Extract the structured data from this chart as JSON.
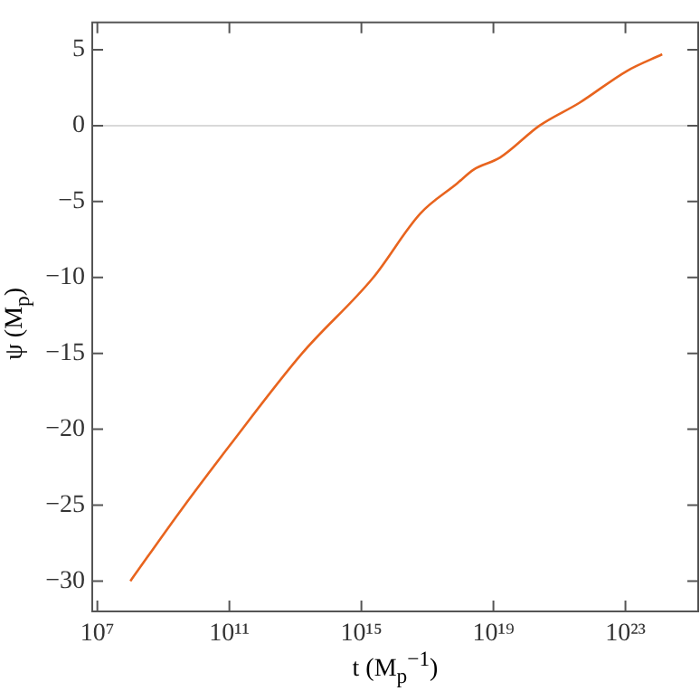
{
  "chart_data": {
    "type": "line",
    "xlabel": "t (M$_{p}$$^{−1}$)",
    "ylabel": "ψ (M$_{p}$)",
    "log": "x",
    "series": [
      {
        "color": "#e8641e",
        "x": [
          100000000.0,
          3000000000.0,
          100000000000.0,
          16000000000000.0,
          2300000000000000.0,
          6e+16,
          8e+17,
          2.5e+18,
          1.6e+19,
          2.5e+20,
          4e+21,
          1.1e+23,
          1.3e+24
        ],
        "values": [
          -30,
          -25.5,
          -21.1,
          -15,
          -10,
          -5.8,
          -3.8,
          -2.9,
          -2.1,
          0,
          1.5,
          3.6,
          4.7
        ]
      }
    ],
    "xlim": [
      7000000.0,
      1.6e+25
    ],
    "xticks": [
      {
        "value": 10000000.0,
        "label": "10⁷"
      },
      {
        "value": 100000000000.0,
        "label": "10¹¹"
      },
      {
        "value": 1000000000000000.0,
        "label": "10¹⁵"
      },
      {
        "value": 1e+19,
        "label": "10¹⁹"
      },
      {
        "value": 1e+23,
        "label": "10²³"
      }
    ],
    "ylim": [
      -32,
      6.8
    ],
    "yticks": [
      {
        "value": 5,
        "label": "5"
      },
      {
        "value": 0,
        "label": "0"
      },
      {
        "value": -5,
        "label": "−5"
      },
      {
        "value": -10,
        "label": "−10"
      },
      {
        "value": -15,
        "label": "−15"
      },
      {
        "value": -20,
        "label": "−20"
      },
      {
        "value": -25,
        "label": "−25"
      },
      {
        "value": -30,
        "label": "−30"
      }
    ],
    "ref_lines": [
      {
        "axis": "y",
        "value": 0,
        "color": "#d9d9d9"
      }
    ],
    "grid": false,
    "legend": false,
    "marker": "none",
    "line_style": "solid"
  }
}
